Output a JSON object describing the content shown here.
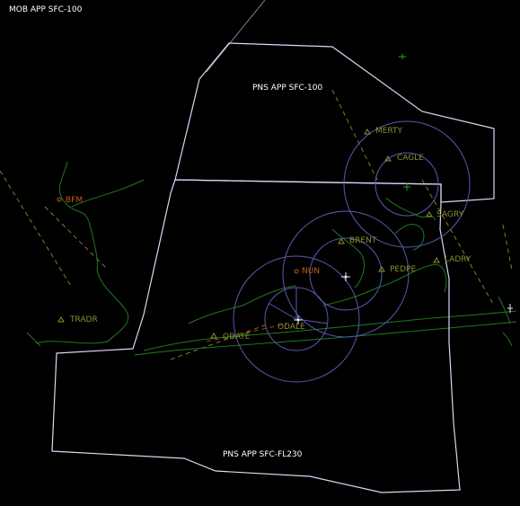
{
  "sectors": {
    "mob": "MOB APP SFC-100",
    "pns_upper": "PNS APP SFC-100",
    "pns_lower": "PNS APP SFC-FL230"
  },
  "fixes": {
    "merty": "MERTY",
    "cagle": "CAGLE",
    "brent": "BRENT",
    "pedpe": "PEDPE",
    "sagry": "SAGRY",
    "ladry": "LADRY",
    "tradr": "TRADR",
    "odaye": "ODAYE",
    "odale": "ODALE"
  },
  "airports": {
    "bfm": "BFM",
    "nun": "NUN"
  },
  "colors": {
    "background": "#000000",
    "boundary": "#d8d8f8",
    "ring": "#5a5ab0",
    "coastline": "#1f7a1f",
    "fix": "#8a8f30",
    "airport": "#c05a1a"
  }
}
